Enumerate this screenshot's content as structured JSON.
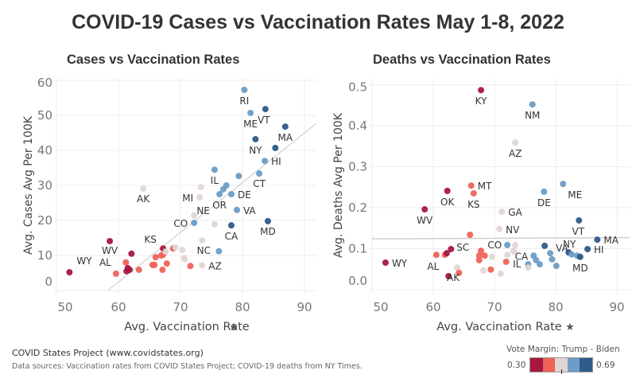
{
  "title": "COVID-19 Cases vs Vaccination Rates May 1-8, 2022",
  "footer": {
    "source_line": "COVID States Project (www.covidstates.org)",
    "data_sources": "Data sources: Vaccination rates from COVID States Project; COVID-19 deaths from NY Times."
  },
  "legend": {
    "title": "Vote Margin: Trump - Biden",
    "min_label": "0.30",
    "max_label": "0.69",
    "colors": [
      "#a8173f",
      "#ee6358",
      "#e1d6d4",
      "#6c9dc6",
      "#2f5b88"
    ]
  },
  "palette": {
    "r2": "#a8173f",
    "r1": "#ee6358",
    "n": "#e1d6d4",
    "b1": "#6c9dc6",
    "b2": "#2f5b88"
  },
  "chart_data": [
    {
      "type": "scatter",
      "title": "Cases vs Vaccination Rates",
      "xlabel": "Avg. Vaccination Rate",
      "ylabel": "Avg. Cases Avg Per 100K",
      "xlim": [
        50,
        92
      ],
      "ylim": [
        -1,
        61
      ],
      "xticks": [
        "50",
        "60",
        "70",
        "80",
        "90"
      ],
      "yticks": [
        "0",
        "10",
        "20",
        "30",
        "40",
        "50",
        "60"
      ],
      "grid": true,
      "trend_line": [
        [
          58.3,
          0
        ],
        [
          91.9,
          47.7
        ]
      ],
      "points": [
        {
          "label": "WY",
          "x": 52.1,
          "y": 5.2,
          "c": "r2"
        },
        {
          "label": "WV",
          "x": 58.6,
          "y": 14.1,
          "c": "r2"
        },
        {
          "label": "AL",
          "x": 59.6,
          "y": 4.8,
          "c": "r1"
        },
        {
          "label": "",
          "x": 61.2,
          "y": 8.0,
          "c": "r1"
        },
        {
          "label": "",
          "x": 61.5,
          "y": 6.4,
          "c": "r2"
        },
        {
          "label": "",
          "x": 61.3,
          "y": 5.5,
          "c": "r2"
        },
        {
          "label": "",
          "x": 61.8,
          "y": 5.9,
          "c": "r2"
        },
        {
          "label": "",
          "x": 62.1,
          "y": 10.5,
          "c": "r2"
        },
        {
          "label": "",
          "x": 63.3,
          "y": 5.9,
          "c": "r1"
        },
        {
          "label": "AK",
          "x": 64.0,
          "y": 29.1,
          "c": "n"
        },
        {
          "label": "",
          "x": 65.5,
          "y": 7.3,
          "c": "r1"
        },
        {
          "label": "",
          "x": 65.8,
          "y": 7.3,
          "c": "r1"
        },
        {
          "label": "",
          "x": 66.0,
          "y": 9.5,
          "c": "r1"
        },
        {
          "label": "",
          "x": 67.1,
          "y": 5.9,
          "c": "r1"
        },
        {
          "label": "",
          "x": 66.9,
          "y": 10.0,
          "c": "r1"
        },
        {
          "label": "",
          "x": 67.2,
          "y": 10.2,
          "c": "r1"
        },
        {
          "label": "KS",
          "x": 67.2,
          "y": 12.0,
          "c": "r2"
        },
        {
          "label": "",
          "x": 67.6,
          "y": 11.1,
          "c": "n"
        },
        {
          "label": "",
          "x": 67.8,
          "y": 7.7,
          "c": "r1"
        },
        {
          "label": "",
          "x": 68.8,
          "y": 12.0,
          "c": "r1"
        },
        {
          "label": "",
          "x": 69.2,
          "y": 12.3,
          "c": "n"
        },
        {
          "label": "",
          "x": 70.3,
          "y": 11.6,
          "c": "n"
        },
        {
          "label": "",
          "x": 70.6,
          "y": 9.3,
          "c": "n"
        },
        {
          "label": "",
          "x": 70.7,
          "y": 8.9,
          "c": "n"
        },
        {
          "label": "",
          "x": 71.6,
          "y": 7.0,
          "c": "r1"
        },
        {
          "label": "CO",
          "x": 72.2,
          "y": 19.3,
          "c": "b1"
        },
        {
          "label": "",
          "x": 72.2,
          "y": 21.4,
          "c": "n"
        },
        {
          "label": "MI",
          "x": 73.1,
          "y": 26.6,
          "c": "n"
        },
        {
          "label": "",
          "x": 73.3,
          "y": 29.5,
          "c": "n"
        },
        {
          "label": "NC",
          "x": 73.5,
          "y": 14.3,
          "c": "n"
        },
        {
          "label": "AZ",
          "x": 73.5,
          "y": 7.2,
          "c": "n"
        },
        {
          "label": "NE",
          "x": 75.5,
          "y": 18.9,
          "c": "n"
        },
        {
          "label": "",
          "x": 76.2,
          "y": 11.2,
          "c": "b1"
        },
        {
          "label": "IL",
          "x": 75.5,
          "y": 34.5,
          "c": "b1"
        },
        {
          "label": "OR",
          "x": 76.3,
          "y": 27.5,
          "c": "b1"
        },
        {
          "label": "",
          "x": 76.9,
          "y": 28.9,
          "c": "b1"
        },
        {
          "label": "",
          "x": 77.4,
          "y": 30.0,
          "c": "b1"
        },
        {
          "label": "CA",
          "x": 78.2,
          "y": 18.6,
          "c": "b2"
        },
        {
          "label": "DE",
          "x": 78.2,
          "y": 27.5,
          "c": "b1"
        },
        {
          "label": "VA",
          "x": 79.1,
          "y": 23.0,
          "c": "b1"
        },
        {
          "label": "",
          "x": 79.4,
          "y": 32.7,
          "c": "b1"
        },
        {
          "label": "RI",
          "x": 80.3,
          "y": 57.3,
          "c": "b1"
        },
        {
          "label": "ME",
          "x": 81.3,
          "y": 50.7,
          "c": "b1"
        },
        {
          "label": "NY",
          "x": 82.1,
          "y": 43.2,
          "c": "b2"
        },
        {
          "label": "CT",
          "x": 82.7,
          "y": 33.4,
          "c": "b1"
        },
        {
          "label": "HI",
          "x": 83.6,
          "y": 37.0,
          "c": "b1"
        },
        {
          "label": "VT",
          "x": 83.7,
          "y": 51.8,
          "c": "b2"
        },
        {
          "label": "MD",
          "x": 84.1,
          "y": 19.8,
          "c": "b2"
        },
        {
          "label": "",
          "x": 85.3,
          "y": 40.7,
          "c": "b2"
        },
        {
          "label": "MA",
          "x": 86.9,
          "y": 46.8,
          "c": "b2"
        }
      ]
    },
    {
      "type": "scatter",
      "title": "Deaths vs Vaccination Rates",
      "xlabel": "Avg. Vaccination Rate",
      "ylabel": "Avg. Deaths Avg Per 100K",
      "xlim": [
        50,
        92
      ],
      "ylim": [
        -0.01,
        0.51
      ],
      "xticks": [
        "50",
        "60",
        "70",
        "80",
        "90"
      ],
      "yticks": [
        "0.0",
        "0.1",
        "0.2",
        "0.3",
        "0.4",
        "0.5"
      ],
      "grid": true,
      "trend_line": [
        [
          50,
          0.124
        ],
        [
          92,
          0.127
        ]
      ],
      "points": [
        {
          "label": "WY",
          "x": 52.2,
          "y": 0.066,
          "c": "r2"
        },
        {
          "label": "WV",
          "x": 58.6,
          "y": 0.196,
          "c": "r2"
        },
        {
          "label": "AL",
          "x": 60.5,
          "y": 0.085,
          "c": "r1"
        },
        {
          "label": "",
          "x": 61.9,
          "y": 0.085,
          "c": "r1"
        },
        {
          "label": "",
          "x": 62.2,
          "y": 0.089,
          "c": "r2"
        },
        {
          "label": "",
          "x": 62.9,
          "y": 0.099,
          "c": "r2"
        },
        {
          "label": "OK",
          "x": 62.3,
          "y": 0.241,
          "c": "r2"
        },
        {
          "label": "",
          "x": 62.5,
          "y": 0.033,
          "c": "r2"
        },
        {
          "label": "AK",
          "x": 63.9,
          "y": 0.054,
          "c": "n"
        },
        {
          "label": "",
          "x": 64.2,
          "y": 0.041,
          "c": "r1"
        },
        {
          "label": "SC",
          "x": 66.0,
          "y": 0.134,
          "c": "r1"
        },
        {
          "label": "MT",
          "x": 66.2,
          "y": 0.254,
          "c": "r1"
        },
        {
          "label": "KS",
          "x": 66.6,
          "y": 0.235,
          "c": "r1"
        },
        {
          "label": "",
          "x": 67.5,
          "y": 0.083,
          "c": "r1"
        },
        {
          "label": "",
          "x": 67.5,
          "y": 0.072,
          "c": "r1"
        },
        {
          "label": "",
          "x": 67.8,
          "y": 0.095,
          "c": "r1"
        },
        {
          "label": "KY",
          "x": 67.8,
          "y": 0.487,
          "c": "r2"
        },
        {
          "label": "",
          "x": 68.2,
          "y": 0.047,
          "c": "n"
        },
        {
          "label": "",
          "x": 68.4,
          "y": 0.083,
          "c": "r1"
        },
        {
          "label": "",
          "x": 69.4,
          "y": 0.049,
          "c": "r1"
        },
        {
          "label": "",
          "x": 69.6,
          "y": 0.08,
          "c": "n"
        },
        {
          "label": "NV",
          "x": 70.8,
          "y": 0.148,
          "c": "n"
        },
        {
          "label": "",
          "x": 71.0,
          "y": 0.039,
          "c": "n"
        },
        {
          "label": "GA",
          "x": 71.2,
          "y": 0.19,
          "c": "n"
        },
        {
          "label": "",
          "x": 71.9,
          "y": 0.068,
          "c": "r1"
        },
        {
          "label": "",
          "x": 72.1,
          "y": 0.085,
          "c": "n"
        },
        {
          "label": "CO",
          "x": 72.1,
          "y": 0.109,
          "c": "b1"
        },
        {
          "label": "",
          "x": 73.1,
          "y": 0.095,
          "c": "n"
        },
        {
          "label": "",
          "x": 73.2,
          "y": 0.093,
          "c": "n"
        },
        {
          "label": "",
          "x": 73.4,
          "y": 0.109,
          "c": "n"
        },
        {
          "label": "AZ",
          "x": 73.4,
          "y": 0.359,
          "c": "n"
        },
        {
          "label": "IL",
          "x": 75.5,
          "y": 0.062,
          "c": "b1"
        },
        {
          "label": "",
          "x": 75.5,
          "y": 0.054,
          "c": "n"
        },
        {
          "label": "NM",
          "x": 76.2,
          "y": 0.452,
          "c": "b1"
        },
        {
          "label": "CA",
          "x": 76.4,
          "y": 0.083,
          "c": "b1"
        },
        {
          "label": "",
          "x": 76.8,
          "y": 0.072,
          "c": "b1"
        },
        {
          "label": "",
          "x": 77.4,
          "y": 0.062,
          "c": "b1"
        },
        {
          "label": "DE",
          "x": 78.1,
          "y": 0.239,
          "c": "b1"
        },
        {
          "label": "",
          "x": 78.2,
          "y": 0.107,
          "c": "b2"
        },
        {
          "label": "VA",
          "x": 79.1,
          "y": 0.089,
          "c": "b1"
        },
        {
          "label": "",
          "x": 79.4,
          "y": 0.074,
          "c": "b1"
        },
        {
          "label": "",
          "x": 80.1,
          "y": 0.058,
          "c": "b1"
        },
        {
          "label": "ME",
          "x": 81.2,
          "y": 0.258,
          "c": "b1"
        },
        {
          "label": "NY",
          "x": 82.1,
          "y": 0.091,
          "c": "b2"
        },
        {
          "label": "",
          "x": 82.6,
          "y": 0.086,
          "c": "b1"
        },
        {
          "label": "",
          "x": 83.5,
          "y": 0.083,
          "c": "b1"
        },
        {
          "label": "VT",
          "x": 83.8,
          "y": 0.169,
          "c": "b2"
        },
        {
          "label": "MD",
          "x": 84.0,
          "y": 0.08,
          "c": "b2"
        },
        {
          "label": "HI",
          "x": 85.2,
          "y": 0.099,
          "c": "b2"
        },
        {
          "label": "MA",
          "x": 86.8,
          "y": 0.122,
          "c": "b2"
        }
      ]
    }
  ]
}
